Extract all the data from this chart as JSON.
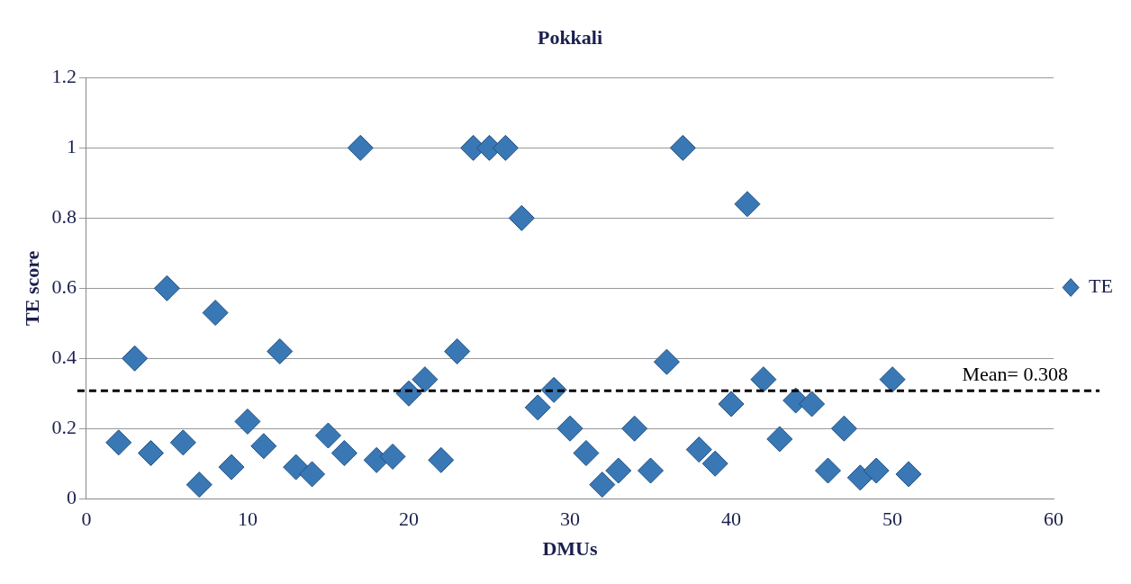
{
  "chart_data": {
    "type": "scatter",
    "title": "Pokkali",
    "xlabel": "DMUs",
    "ylabel": "TE score",
    "series": [
      {
        "name": "TE",
        "color": "#3a78b5",
        "x": [
          2,
          3,
          4,
          5,
          6,
          7,
          8,
          9,
          10,
          11,
          12,
          13,
          14,
          15,
          16,
          17,
          18,
          19,
          20,
          21,
          22,
          23,
          24,
          25,
          26,
          27,
          28,
          29,
          30,
          31,
          32,
          33,
          34,
          35,
          36,
          37,
          38,
          39,
          40,
          41,
          42,
          43,
          44,
          45,
          46,
          47,
          48,
          49,
          50,
          51
        ],
        "values": [
          0.16,
          0.4,
          0.13,
          0.6,
          0.16,
          0.04,
          0.53,
          0.09,
          0.22,
          0.15,
          0.42,
          0.09,
          0.07,
          0.18,
          0.13,
          1,
          0.11,
          0.12,
          0.3,
          0.34,
          0.11,
          0.42,
          1,
          1,
          1,
          0.8,
          0.26,
          0.31,
          0.2,
          0.13,
          0.04,
          0.08,
          0.2,
          0.08,
          0.39,
          1,
          0.14,
          0.1,
          0.27,
          0.84,
          0.34,
          0.17,
          0.28,
          0.27,
          0.08,
          0.2,
          0.06,
          0.08,
          0.34,
          0.07
        ]
      }
    ],
    "xlim": [
      0,
      60
    ],
    "xticks": [
      0,
      10,
      20,
      30,
      40,
      50,
      60
    ],
    "ylim": [
      0,
      1.2
    ],
    "yticks": [
      0,
      0.2,
      0.4,
      0.6,
      0.8,
      1,
      1.2
    ],
    "grid": "y",
    "legend": "right",
    "marker": "diamond",
    "ref_lines": [
      {
        "axis": "y",
        "value": 0.308,
        "label": "Mean= 0.308",
        "color": "#000000",
        "line_style": "dashed"
      }
    ]
  }
}
